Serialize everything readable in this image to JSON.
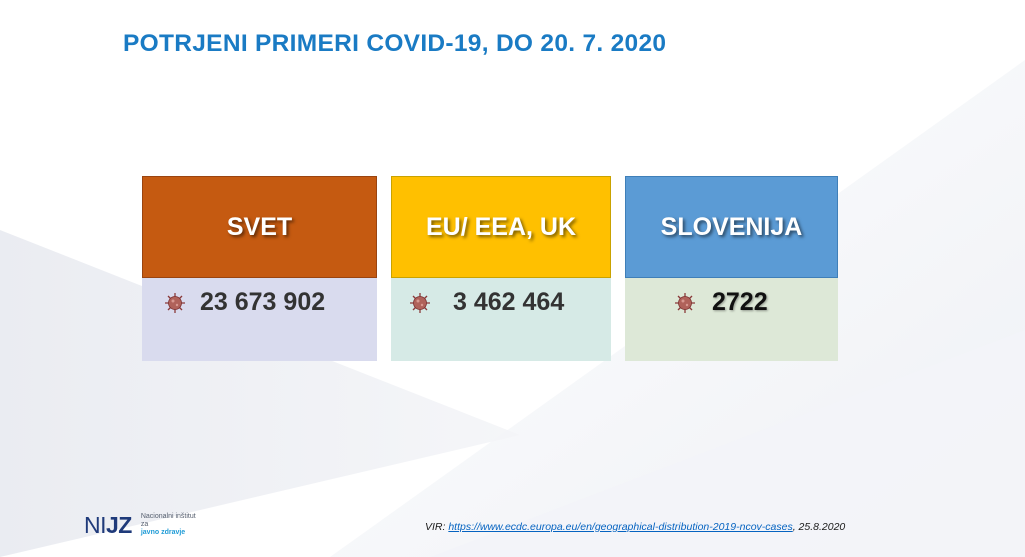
{
  "title": "POTRJENI PRIMERI COVID-19, DO 20. 7. 2020",
  "cards": [
    {
      "label": "SVET",
      "value": "23 673 902",
      "header_color": "#c55a11",
      "body_color": "#d9dbee",
      "icon": "virus-icon"
    },
    {
      "label": "EU/ EEA, UK",
      "value": "3 462 464",
      "header_color": "#ffc000",
      "body_color": "#d6eae6",
      "icon": "virus-icon"
    },
    {
      "label": "SLOVENIJA",
      "value": "2722",
      "header_color": "#5b9bd5",
      "body_color": "#dde8d7",
      "icon": "virus-icon"
    }
  ],
  "footer": {
    "logo": {
      "mark_ni": "NI",
      "mark_jz": "JZ",
      "line1": "Nacionalni inštitut",
      "line2": "za",
      "line3": "javno zdravje"
    },
    "source_prefix": "VIR: ",
    "source_link": "https://www.ecdc.europa.eu/en/geographical-distribution-2019-ncov-cases",
    "source_suffix": ", 25.8.2020"
  }
}
